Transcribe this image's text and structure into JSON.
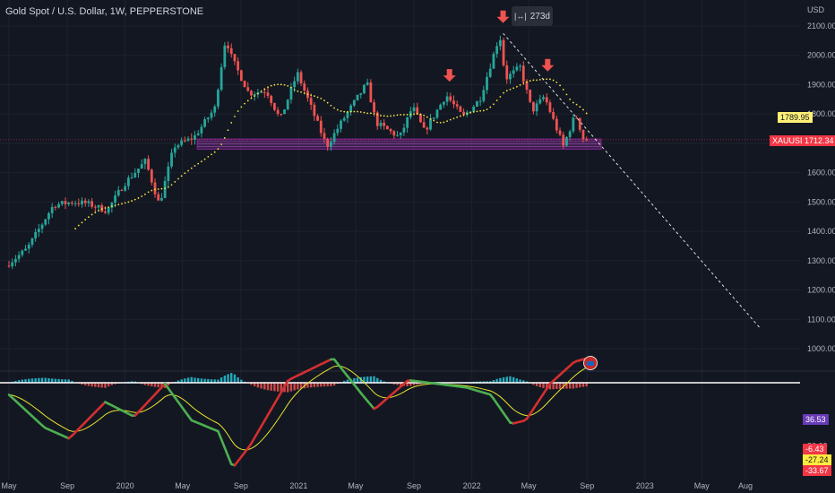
{
  "header": {
    "title": "Gold Spot / U.S. Dollar, 1W, PEPPERSTONE",
    "tooltip": "273d",
    "currency": "USD"
  },
  "labels": {
    "ma_value": "1789.95",
    "symbol": "XAUUSD",
    "last_price": "1712.34",
    "osc_value": "36.53",
    "macd_a": "-6.43",
    "macd_b": "-27.24",
    "macd_c": "-33.67"
  },
  "colors": {
    "background": "#131722",
    "up": "#26a69a",
    "down": "#ef5350",
    "ma": "#f5e742",
    "zone": "#9c27b0",
    "arrow": "#ef5350",
    "osc_green": "#4caf50",
    "osc_red": "#d32f2f",
    "signal": "#e6e62e",
    "hist_up": "#26c6da",
    "hist_down": "#ef5350"
  },
  "chart_data": [
    {
      "type": "candlestick",
      "title": "Gold Spot / U.S. Dollar, 1W, PEPPERSTONE",
      "currency": "USD",
      "y_ticks": [
        1000,
        1100,
        1200,
        1300,
        1400,
        1500,
        1600,
        1700,
        1800,
        1900,
        2000,
        2100
      ],
      "ylim": [
        970,
        2130
      ],
      "x_ticks": [
        "May",
        "Sep",
        "2020",
        "May",
        "Sep",
        "2021",
        "May",
        "Sep",
        "2022",
        "May",
        "Sep",
        "2023",
        "May",
        "Aug"
      ],
      "x_tick_dates": [
        "2019-05-01",
        "2019-09-01",
        "2020-01-01",
        "2020-05-01",
        "2020-09-01",
        "2021-01-01",
        "2021-05-01",
        "2021-09-01",
        "2022-01-01",
        "2022-05-01",
        "2022-09-01",
        "2023-01-01",
        "2023-05-01",
        "2023-08-01"
      ],
      "series": [
        {
          "name": "XAUUSD",
          "anchors": [
            [
              "2019-05-01",
              1283
            ],
            [
              "2019-06-15",
              1340
            ],
            [
              "2019-08-10",
              1490
            ],
            [
              "2019-09-20",
              1500
            ],
            [
              "2019-10-20",
              1495
            ],
            [
              "2019-12-01",
              1470
            ],
            [
              "2020-01-05",
              1560
            ],
            [
              "2020-02-20",
              1640
            ],
            [
              "2020-03-20",
              1490
            ],
            [
              "2020-04-20",
              1690
            ],
            [
              "2020-06-01",
              1720
            ],
            [
              "2020-07-15",
              1820
            ],
            [
              "2020-08-07",
              2060
            ],
            [
              "2020-08-20",
              1990
            ],
            [
              "2020-09-25",
              1870
            ],
            [
              "2020-11-01",
              1880
            ],
            [
              "2020-11-30",
              1780
            ],
            [
              "2021-01-05",
              1940
            ],
            [
              "2021-03-08",
              1690
            ],
            [
              "2021-04-15",
              1790
            ],
            [
              "2021-06-01",
              1905
            ],
            [
              "2021-06-20",
              1770
            ],
            [
              "2021-08-09",
              1720
            ],
            [
              "2021-09-05",
              1825
            ],
            [
              "2021-09-30",
              1740
            ],
            [
              "2021-11-15",
              1865
            ],
            [
              "2021-12-20",
              1790
            ],
            [
              "2022-01-25",
              1850
            ],
            [
              "2022-03-08",
              2070
            ],
            [
              "2022-03-20",
              1920
            ],
            [
              "2022-04-20",
              1960
            ],
            [
              "2022-05-15",
              1810
            ],
            [
              "2022-06-10",
              1860
            ],
            [
              "2022-07-20",
              1690
            ],
            [
              "2022-08-15",
              1800
            ],
            [
              "2022-09-01",
              1712
            ]
          ]
        },
        {
          "name": "MA",
          "last_value": 1789.95
        },
        {
          "name": "Trend line",
          "points": [
            [
              "2022-03-08",
              2075
            ],
            [
              "2023-09-01",
              1070
            ]
          ]
        }
      ],
      "annotations": [
        {
          "type": "support_zone",
          "from": 1680,
          "to": 1715,
          "x_start": "2020-06-01",
          "x_end": "2022-10-01"
        },
        {
          "type": "arrow_down",
          "date": "2021-11-15",
          "price": 1910
        },
        {
          "type": "arrow_down",
          "date": "2022-03-08",
          "price": 2110
        },
        {
          "type": "arrow_down",
          "date": "2022-06-10",
          "price": 1945
        },
        {
          "type": "duration",
          "text": "273d"
        }
      ],
      "last_price": 1712.34,
      "grid": true
    },
    {
      "type": "oscillator",
      "y_ticks": [
        80
      ],
      "markers": [
        36.53,
        -6.43,
        -27.24,
        -33.67
      ],
      "anchors": [
        [
          "2019-05-01",
          10
        ],
        [
          "2019-07-15",
          55
        ],
        [
          "2019-09-05",
          70
        ],
        [
          "2019-11-20",
          20
        ],
        [
          "2020-01-20",
          40
        ],
        [
          "2020-03-25",
          -5
        ],
        [
          "2020-05-20",
          45
        ],
        [
          "2020-07-15",
          60
        ],
        [
          "2020-08-15",
          110
        ],
        [
          "2020-09-20",
          80
        ],
        [
          "2020-12-10",
          -10
        ],
        [
          "2021-03-15",
          -40
        ],
        [
          "2021-05-15",
          10
        ],
        [
          "2021-06-10",
          30
        ],
        [
          "2021-08-20",
          -10
        ],
        [
          "2021-10-20",
          -5
        ],
        [
          "2021-12-20",
          0
        ],
        [
          "2022-02-10",
          10
        ],
        [
          "2022-03-25",
          50
        ],
        [
          "2022-04-25",
          45
        ],
        [
          "2022-06-15",
          -5
        ],
        [
          "2022-08-05",
          -35
        ],
        [
          "2022-09-01",
          -40
        ]
      ]
    }
  ]
}
